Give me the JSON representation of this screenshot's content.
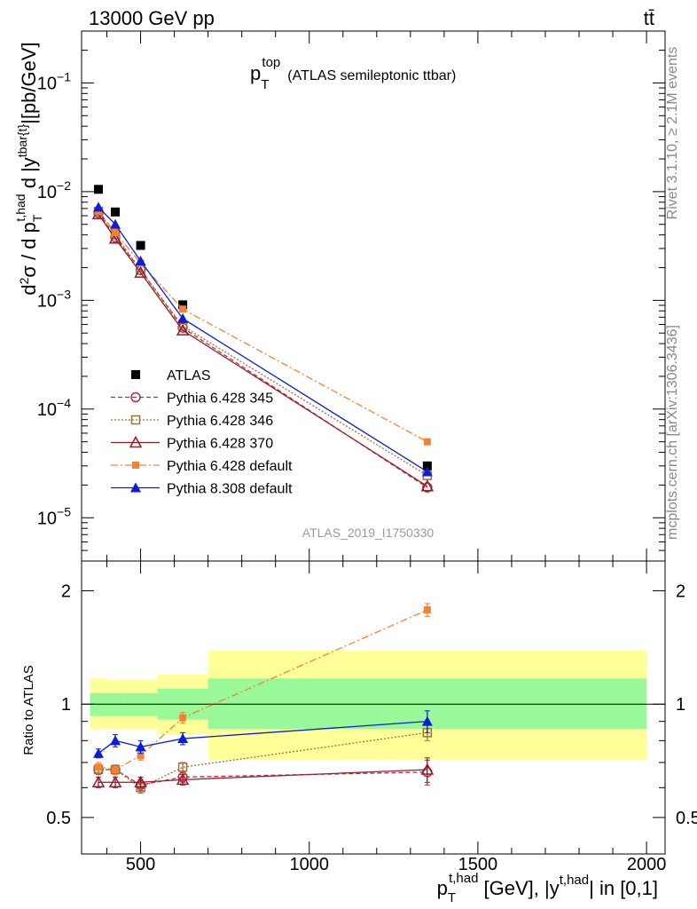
{
  "header": {
    "left": "13000 GeV pp",
    "right": "tt̄"
  },
  "side": {
    "rivet": "Rivet 3.1.10, ≥ 2.1M events",
    "mcplots": "mcplots.cern.ch [arXiv:1306.3436]"
  },
  "chart_data": [
    {
      "panel": "main",
      "type": "scatter",
      "title": "(ATLAS semileptonic ttbar)",
      "title_var": "p",
      "title_sup": "top",
      "title_sub": "T",
      "ylabel": "d²σ / d p_T^{t,had} d |y^{tbar{t}}|[pb/GeV]",
      "yscale": "log",
      "ylim": [
        4e-06,
        0.3
      ],
      "xlim": [
        325,
        2055
      ],
      "y_tick_labels": [
        {
          "v": 1e-05,
          "b": "10",
          "e": "−5"
        },
        {
          "v": 0.0001,
          "b": "10",
          "e": "−4"
        },
        {
          "v": 0.001,
          "b": "10",
          "e": "−3"
        },
        {
          "v": 0.01,
          "b": "10",
          "e": "−2"
        },
        {
          "v": 0.1,
          "b": "10",
          "e": "−1"
        }
      ],
      "analysis": "ATLAS_2019_I1750330",
      "series": [
        {
          "name": "ATLAS",
          "color": "#000000",
          "marker": "square-filled",
          "line": "none",
          "x": [
            375,
            425,
            500,
            625,
            1350
          ],
          "y": [
            0.0105,
            0.0065,
            0.0032,
            0.00091,
            3e-05
          ]
        },
        {
          "name": "Pythia 6.428 345",
          "color": "#b03040",
          "marker": "circle-open",
          "line": "dashed",
          "x": [
            375,
            425,
            500,
            625,
            1350
          ],
          "y": [
            0.0064,
            0.0038,
            0.0019,
            0.00056,
            1.9e-05
          ]
        },
        {
          "name": "Pythia 6.428 346",
          "color": "#a0703a",
          "marker": "square-open",
          "line": "dotted",
          "x": [
            375,
            425,
            500,
            625,
            1350
          ],
          "y": [
            0.0066,
            0.004,
            0.0019,
            0.00058,
            2.45e-05
          ]
        },
        {
          "name": "Pythia 6.428 370",
          "color": "#9a1a2a",
          "marker": "triangle-open",
          "line": "solid",
          "x": [
            375,
            425,
            500,
            625,
            1350
          ],
          "y": [
            0.0062,
            0.0037,
            0.0018,
            0.00053,
            1.95e-05
          ]
        },
        {
          "name": "Pythia 6.428 default",
          "color": "#f58231",
          "marker": "square-small",
          "line": "dashdot",
          "x": [
            375,
            425,
            500,
            625,
            1350
          ],
          "y": [
            0.0066,
            0.0042,
            0.0022,
            0.00083,
            5e-05
          ]
        },
        {
          "name": "Pythia 8.308 default",
          "color": "#0a1ed8",
          "marker": "triangle-filled",
          "line": "solid",
          "x": [
            375,
            425,
            500,
            625,
            1350
          ],
          "y": [
            0.0072,
            0.005,
            0.0023,
            0.00068,
            2.65e-05
          ]
        }
      ]
    },
    {
      "panel": "ratio",
      "type": "line",
      "ylabel": "Ratio to ATLAS",
      "yscale": "log",
      "ylim": [
        0.4,
        2.4
      ],
      "xlim": [
        325,
        2055
      ],
      "xlabel_main": "p",
      "xlabel_sup": "t,had",
      "xlabel_sub": "T",
      "xlabel_mid": " [GeV], |y",
      "xlabel_sup2": "t,had",
      "xlabel_end": "| in [0,1]",
      "x_tick_labels": [
        "500",
        "1000",
        "1500",
        "2000"
      ],
      "y_tick_labels": [
        "0.5",
        "1",
        "2"
      ],
      "bands": [
        {
          "x0": 350,
          "x1": 400,
          "yellow": [
            0.86,
            1.17
          ],
          "green": [
            0.93,
            1.07
          ]
        },
        {
          "x0": 400,
          "x1": 450,
          "yellow": [
            0.86,
            1.16
          ],
          "green": [
            0.93,
            1.07
          ]
        },
        {
          "x0": 450,
          "x1": 550,
          "yellow": [
            0.86,
            1.16
          ],
          "green": [
            0.93,
            1.07
          ]
        },
        {
          "x0": 550,
          "x1": 700,
          "yellow": [
            0.83,
            1.2
          ],
          "green": [
            0.91,
            1.1
          ]
        },
        {
          "x0": 700,
          "x1": 2000,
          "yellow": [
            0.71,
            1.39
          ],
          "green": [
            0.86,
            1.17
          ]
        }
      ],
      "series": [
        {
          "name": "Pythia 6.428 345",
          "color": "#b03040",
          "marker": "circle-open",
          "line": "dashed",
          "x": [
            375,
            425,
            500,
            625,
            1350
          ],
          "y": [
            0.67,
            0.67,
            0.61,
            0.64,
            0.66
          ],
          "err": [
            0.02,
            0.02,
            0.02,
            0.02,
            0.05
          ]
        },
        {
          "name": "Pythia 6.428 346",
          "color": "#a0703a",
          "marker": "square-open",
          "line": "dotted",
          "x": [
            375,
            425,
            500,
            625,
            1350
          ],
          "y": [
            0.67,
            0.67,
            0.6,
            0.68,
            0.84
          ],
          "err": [
            0.02,
            0.02,
            0.02,
            0.02,
            0.04
          ]
        },
        {
          "name": "Pythia 6.428 370",
          "color": "#9a1a2a",
          "marker": "triangle-open",
          "line": "solid",
          "x": [
            375,
            425,
            500,
            625,
            1350
          ],
          "y": [
            0.62,
            0.62,
            0.62,
            0.63,
            0.67
          ],
          "err": [
            0.02,
            0.02,
            0.02,
            0.02,
            0.05
          ]
        },
        {
          "name": "Pythia 6.428 default",
          "color": "#f58231",
          "marker": "square-small",
          "line": "dashdot",
          "x": [
            375,
            425,
            500,
            625,
            1350
          ],
          "y": [
            0.68,
            0.67,
            0.73,
            0.92,
            1.78
          ],
          "err": [
            0.02,
            0.02,
            0.02,
            0.03,
            0.07
          ]
        },
        {
          "name": "Pythia 8.308 default",
          "color": "#0a1ed8",
          "marker": "triangle-filled",
          "line": "solid",
          "x": [
            375,
            425,
            500,
            625,
            1350
          ],
          "y": [
            0.74,
            0.8,
            0.77,
            0.81,
            0.9
          ],
          "err": [
            0.02,
            0.03,
            0.03,
            0.03,
            0.06
          ]
        }
      ]
    }
  ]
}
